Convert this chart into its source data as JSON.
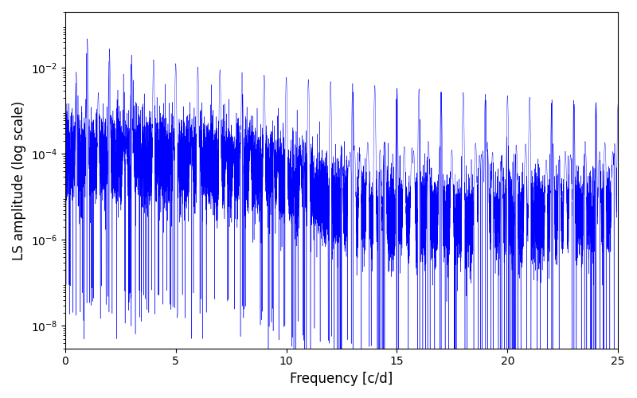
{
  "title": "",
  "xlabel": "Frequency [c/d]",
  "ylabel": "LS amplitude (log scale)",
  "xlim": [
    0,
    25
  ],
  "ylim": [
    3e-09,
    0.2
  ],
  "line_color": "#0000FF",
  "line_width": 0.3,
  "yscale": "log",
  "figsize": [
    8.0,
    5.0
  ],
  "dpi": 100,
  "seed": 7,
  "n_points": 15000,
  "freq_max": 25.0,
  "yticks": [
    1e-08,
    1e-06,
    0.0001,
    0.01
  ],
  "xticks": [
    0,
    5,
    10,
    15,
    20,
    25
  ]
}
